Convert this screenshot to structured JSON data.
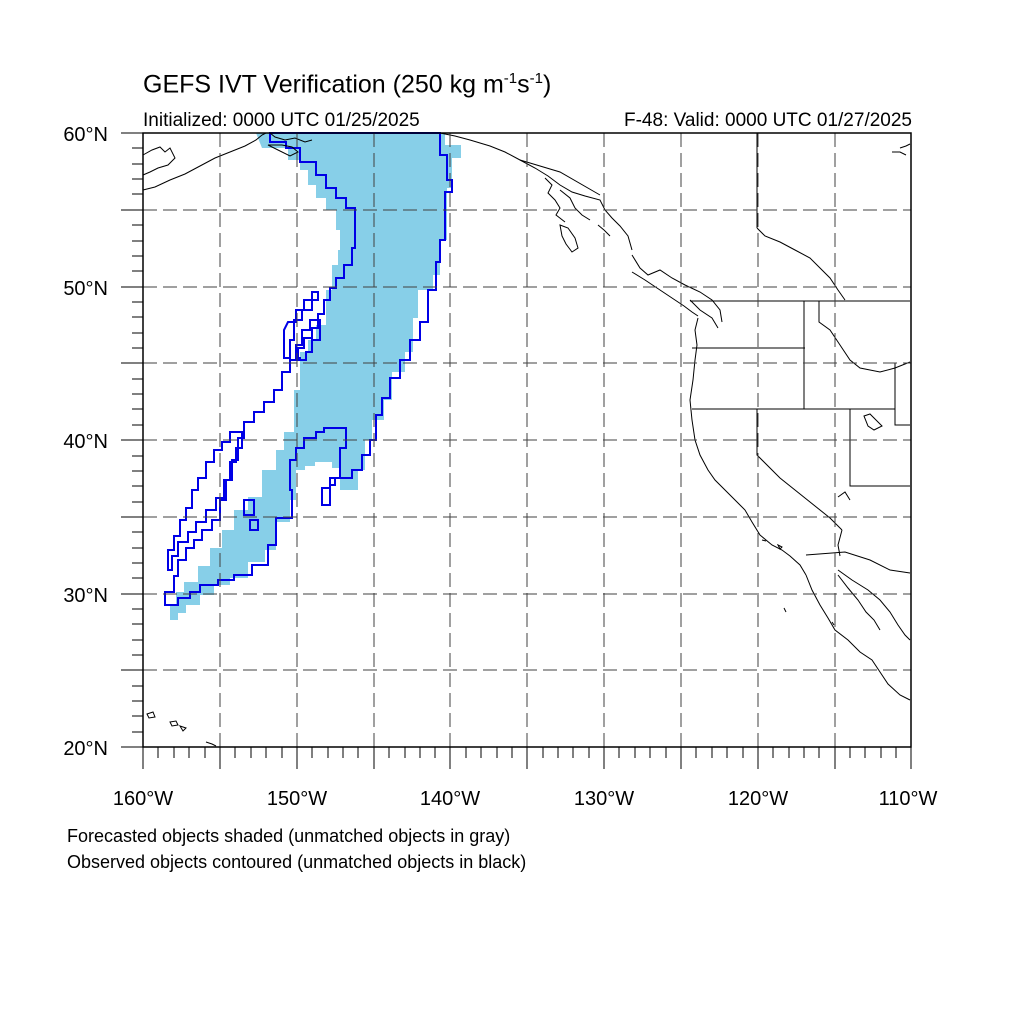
{
  "title": {
    "prefix": "GEFS IVT Verification (250 kg m",
    "exp1": "-1",
    "mid": "s",
    "exp2": "-1",
    "suffix": ")"
  },
  "initialized": "Initialized: 0000 UTC 01/25/2025",
  "valid": "F-48: Valid: 0000 UTC 01/27/2025",
  "caption": [
    "Forecasted objects shaded (unmatched objects in gray)",
    "Observed objects contoured (unmatched objects in black)"
  ],
  "map": {
    "lon_range": [
      -160,
      -110
    ],
    "lat_range": [
      20,
      60
    ],
    "lon_ticks": [
      "160°W",
      "150°W",
      "140°W",
      "130°W",
      "120°W",
      "110°W"
    ],
    "lat_ticks": [
      "20°N",
      "30°N",
      "40°N",
      "50°N",
      "60°N"
    ],
    "grid": "dashed",
    "colors": {
      "forecast_fill": "#87cfe8",
      "observed_contour": "#0000e6",
      "coastline": "#000000"
    }
  }
}
